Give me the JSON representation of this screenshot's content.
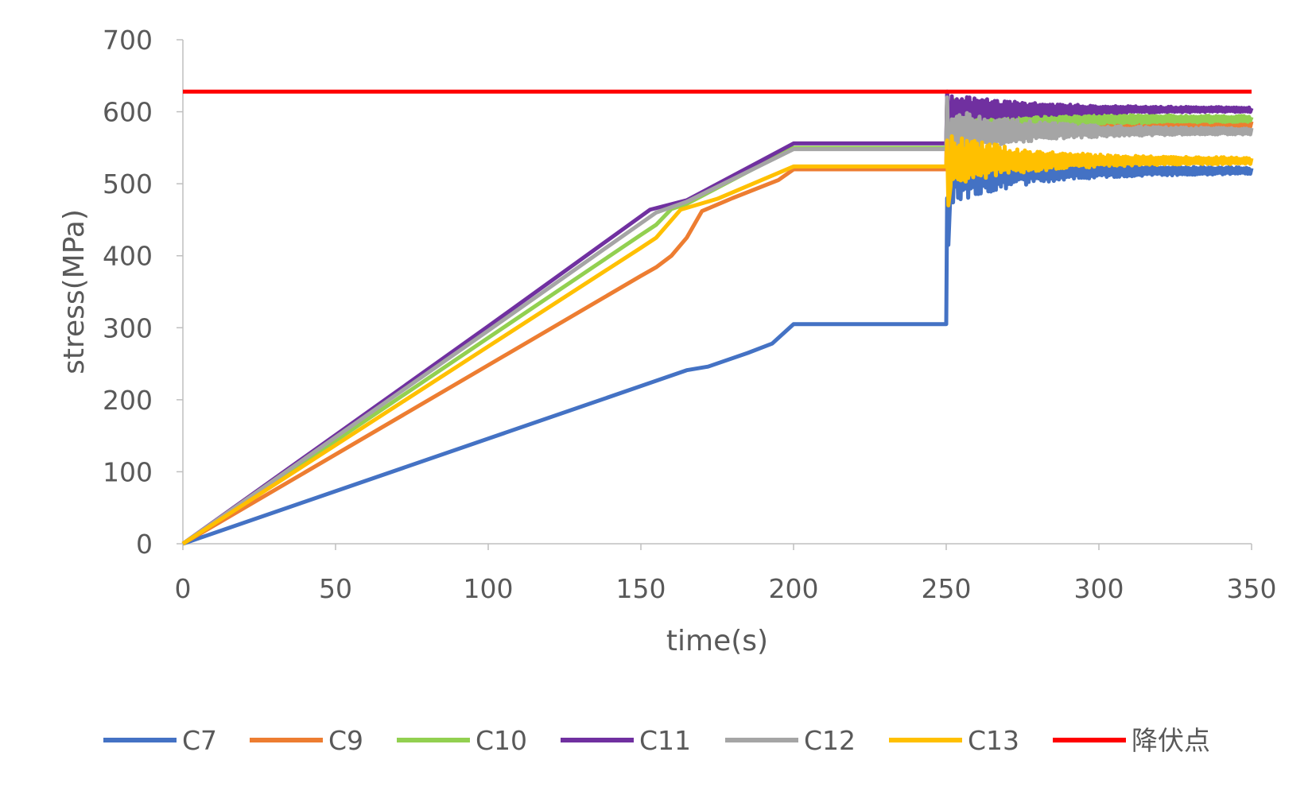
{
  "chart_data": {
    "type": "line",
    "title": "",
    "xlabel": "time(s)",
    "ylabel": "stress(MPa)",
    "xlim": [
      0,
      350
    ],
    "ylim": [
      0,
      700
    ],
    "xticks": [
      0,
      50,
      100,
      150,
      200,
      250,
      300,
      350
    ],
    "yticks": [
      0,
      100,
      200,
      300,
      400,
      500,
      600,
      700
    ],
    "xtick_labels": [
      "0",
      "50",
      "100",
      "150",
      "200",
      "250",
      "300",
      "350"
    ],
    "ytick_labels": [
      "0",
      "100",
      "200",
      "300",
      "400",
      "500",
      "600",
      "700"
    ],
    "grid": false,
    "legend_position": "bottom",
    "series": [
      {
        "name": "C7",
        "color": "#4472C4",
        "points": [
          [
            0,
            0
          ],
          [
            50,
            73
          ],
          [
            100,
            146
          ],
          [
            150,
            219
          ],
          [
            165,
            241
          ],
          [
            172,
            246
          ],
          [
            185,
            265
          ],
          [
            193,
            278
          ],
          [
            200,
            305
          ],
          [
            250,
            305
          ]
        ],
        "oscillation": {
          "start": 250,
          "end": 350,
          "initial": 305,
          "peak": 480,
          "trough": 415,
          "settle": 518,
          "amp_start": 45,
          "amp_end": 4
        }
      },
      {
        "name": "C9",
        "color": "#ED7D31",
        "points": [
          [
            0,
            0
          ],
          [
            50,
            124
          ],
          [
            100,
            248
          ],
          [
            150,
            372
          ],
          [
            155,
            384
          ],
          [
            160,
            400
          ],
          [
            165,
            425
          ],
          [
            170,
            462
          ],
          [
            180,
            480
          ],
          [
            195,
            505
          ],
          [
            200,
            520
          ],
          [
            250,
            520
          ]
        ],
        "oscillation": {
          "start": 250,
          "end": 350,
          "initial": 520,
          "peak": 625,
          "trough": 555,
          "settle": 582,
          "amp_start": 30,
          "amp_end": 4
        }
      },
      {
        "name": "C10",
        "color": "#92D050",
        "points": [
          [
            0,
            0
          ],
          [
            50,
            143
          ],
          [
            100,
            286
          ],
          [
            150,
            429
          ],
          [
            155,
            443
          ],
          [
            160,
            465
          ],
          [
            165,
            472
          ],
          [
            200,
            550
          ],
          [
            250,
            550
          ]
        ],
        "oscillation": {
          "start": 250,
          "end": 350,
          "initial": 550,
          "peak": 625,
          "trough": 560,
          "settle": 590,
          "amp_start": 25,
          "amp_end": 4
        }
      },
      {
        "name": "C11",
        "color": "#7030A0",
        "points": [
          [
            0,
            0
          ],
          [
            50,
            151
          ],
          [
            100,
            302
          ],
          [
            153,
            464
          ],
          [
            165,
            477
          ],
          [
            200,
            556
          ],
          [
            250,
            556
          ]
        ],
        "oscillation": {
          "start": 250,
          "end": 350,
          "initial": 556,
          "peak": 628,
          "trough": 590,
          "settle": 603,
          "amp_start": 20,
          "amp_end": 3
        }
      },
      {
        "name": "C12",
        "color": "#A5A5A5",
        "points": [
          [
            0,
            0
          ],
          [
            50,
            148
          ],
          [
            100,
            296
          ],
          [
            155,
            460
          ],
          [
            165,
            475
          ],
          [
            200,
            548
          ],
          [
            250,
            548
          ]
        ],
        "oscillation": {
          "start": 250,
          "end": 350,
          "initial": 548,
          "peak": 620,
          "trough": 540,
          "settle": 573,
          "amp_start": 30,
          "amp_end": 4
        }
      },
      {
        "name": "C13",
        "color": "#FFC000",
        "points": [
          [
            0,
            0
          ],
          [
            50,
            137
          ],
          [
            100,
            274
          ],
          [
            150,
            411
          ],
          [
            155,
            425
          ],
          [
            163,
            464
          ],
          [
            175,
            479
          ],
          [
            200,
            524
          ],
          [
            250,
            524
          ]
        ],
        "oscillation": {
          "start": 250,
          "end": 350,
          "initial": 524,
          "peak": 560,
          "trough": 470,
          "settle": 532,
          "amp_start": 35,
          "amp_end": 4
        }
      },
      {
        "name": "降伏点",
        "color": "#FF0000",
        "points": [
          [
            0,
            628
          ],
          [
            350,
            628
          ]
        ]
      }
    ]
  }
}
